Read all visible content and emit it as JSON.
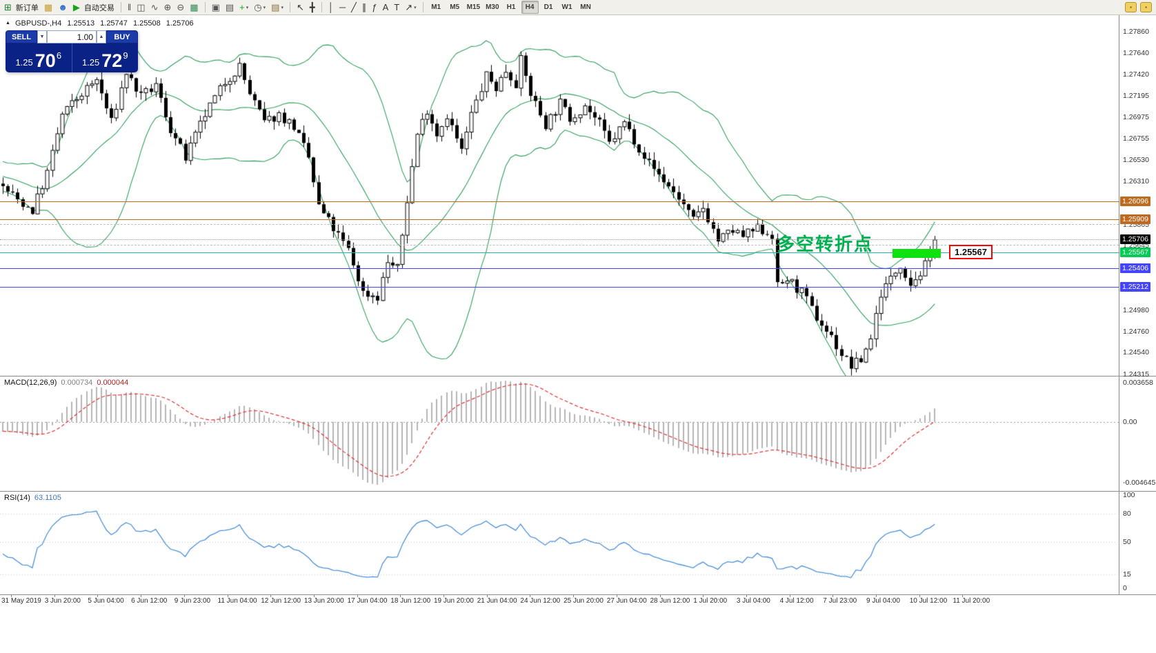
{
  "toolbar": {
    "items": [
      {
        "t": "icon",
        "name": "new-order-icon",
        "g": "⊞",
        "c": "#1e7d32"
      },
      {
        "t": "label",
        "name": "new-order-label",
        "text": "新订单"
      },
      {
        "t": "icon",
        "name": "charts-icon",
        "g": "▦",
        "c": "#c99a2e"
      },
      {
        "t": "icon",
        "name": "profile-icon",
        "g": "☻",
        "c": "#2f6fd0"
      },
      {
        "t": "icon",
        "name": "autotrade-icon",
        "g": "▶",
        "c": "#17a317"
      },
      {
        "t": "label",
        "name": "autotrade-label",
        "text": "自动交易"
      },
      {
        "t": "sep"
      },
      {
        "t": "icon",
        "name": "bars-chart-icon",
        "g": "‖",
        "c": "#555555"
      },
      {
        "t": "icon",
        "name": "candlestick-icon",
        "g": "◫",
        "c": "#555555"
      },
      {
        "t": "icon",
        "name": "line-chart-icon",
        "g": "∿",
        "c": "#555555"
      },
      {
        "t": "icon",
        "name": "zoom-in-icon",
        "g": "⊕",
        "c": "#555555"
      },
      {
        "t": "icon",
        "name": "zoom-out-icon",
        "g": "⊖",
        "c": "#555555"
      },
      {
        "t": "icon",
        "name": "tile-windows-icon",
        "g": "▦",
        "c": "#2e8b57"
      },
      {
        "t": "sep"
      },
      {
        "t": "icon",
        "name": "data-window-icon",
        "g": "▣",
        "c": "#555555"
      },
      {
        "t": "icon",
        "name": "navigator-icon",
        "g": "▤",
        "c": "#555555"
      },
      {
        "t": "icon",
        "name": "add-indicator-icon",
        "g": "+",
        "c": "#17a317",
        "caret": true
      },
      {
        "t": "icon",
        "name": "period-icon",
        "g": "◷",
        "c": "#555555",
        "caret": true
      },
      {
        "t": "icon",
        "name": "template-icon",
        "g": "▤",
        "c": "#8a6d3b",
        "caret": true
      },
      {
        "t": "sep"
      },
      {
        "t": "icon",
        "name": "cursor-icon",
        "g": "↖",
        "c": "#333333"
      },
      {
        "t": "icon",
        "name": "crosshair-icon",
        "g": "╋",
        "c": "#333333"
      },
      {
        "t": "sep"
      },
      {
        "t": "icon",
        "name": "vertical-line-icon",
        "g": "│",
        "c": "#333333"
      },
      {
        "t": "icon",
        "name": "horizontal-line-icon",
        "g": "─",
        "c": "#333333"
      },
      {
        "t": "icon",
        "name": "trendline-icon",
        "g": "╱",
        "c": "#333333"
      },
      {
        "t": "icon",
        "name": "channel-icon",
        "g": "∥",
        "c": "#333333"
      },
      {
        "t": "icon",
        "name": "fibonacci-icon",
        "g": "ƒ",
        "c": "#333333"
      },
      {
        "t": "icon",
        "name": "text-icon",
        "g": "A",
        "c": "#333333"
      },
      {
        "t": "icon",
        "name": "label-icon",
        "g": "T",
        "c": "#333333"
      },
      {
        "t": "icon",
        "name": "shapes-icon",
        "g": "↗",
        "c": "#333333",
        "caret": true
      },
      {
        "t": "sep"
      }
    ],
    "timeframes": [
      {
        "label": "M1",
        "active": false
      },
      {
        "label": "M5",
        "active": false
      },
      {
        "label": "M15",
        "active": false
      },
      {
        "label": "M30",
        "active": false
      },
      {
        "label": "H1",
        "active": false
      },
      {
        "label": "H4",
        "active": true
      },
      {
        "label": "D1",
        "active": false
      },
      {
        "label": "W1",
        "active": false
      },
      {
        "label": "MN",
        "active": false
      }
    ]
  },
  "symbol_header": {
    "symbol": "GBPUSD-,H4",
    "open": "1.25513",
    "high": "1.25747",
    "low": "1.25508",
    "close": "1.25706"
  },
  "trade_panel": {
    "sell_label": "SELL",
    "buy_label": "BUY",
    "volume": "1.00",
    "sell_price_main": "1.25",
    "sell_price_pips": "70",
    "sell_price_pt": "6",
    "buy_price_main": "1.25",
    "buy_price_pips": "72",
    "buy_price_pt": "9"
  },
  "main_chart": {
    "annotation": "多空转折点",
    "callout": "1.25567",
    "price_axis": {
      "top": 1.2803,
      "bottom": 1.243
    },
    "grid_labels": [
      "1.27860",
      "1.27640",
      "1.27420",
      "1.27195",
      "1.26975",
      "1.26755",
      "1.26530",
      "1.26310",
      "1.24980",
      "1.24760",
      "1.24540",
      "1.24315"
    ],
    "lines": [
      {
        "price": 1.26096,
        "label": "1.26096",
        "line": "solid",
        "color": "#C06A20",
        "label_bg": "#C06A20",
        "label_fg": "#FFFFFF"
      },
      {
        "price": 1.25909,
        "label": "1.25909",
        "line": "solid",
        "color": "#C06A20",
        "label_bg": "#C06A20",
        "label_fg": "#FFFFFF"
      },
      {
        "price": 1.25865,
        "label": "1.25865",
        "line": "dashed",
        "color": "#C0C0C0",
        "label_bg": "",
        "label_fg": "#444444"
      },
      {
        "price": 1.25706,
        "label": "1.25706",
        "line": "dotted",
        "color": "#999999",
        "label_bg": "#000000",
        "label_fg": "#FFFFFF"
      },
      {
        "price": 1.25645,
        "label": "1.25645",
        "line": "dashed",
        "color": "#C0C0C0",
        "label_bg": "",
        "label_fg": "#444444"
      },
      {
        "price": 1.25567,
        "label": "1.25567",
        "line": "solid",
        "color": "#1FB8A6",
        "label_bg": "#00CC55",
        "label_fg": "#FFFFFF"
      },
      {
        "price": 1.25406,
        "label": "1.25406",
        "line": "solid",
        "color": "#4444FF",
        "label_bg": "#4444FF",
        "label_fg": "#FFFFFF"
      },
      {
        "price": 1.25212,
        "label": "1.25212",
        "line": "solid",
        "color": "#4444FF",
        "label_bg": "#4444FF",
        "label_fg": "#FFFFFF"
      }
    ],
    "highlight_rect": {
      "from_candle": 181,
      "to_candle": 190,
      "price_low": 1.2552,
      "price_high": 1.25615,
      "color": "#0FE00F"
    }
  },
  "chart_data": {
    "type": "candlestick+indicators",
    "symbol": "GBPUSD",
    "period": "H4",
    "n_candles": 190,
    "warmup": 40,
    "bollinger": {
      "period": 20,
      "deviation": 2
    },
    "macd": {
      "fast": 12,
      "slow": 26,
      "signal": 9
    },
    "rsi": {
      "period": 14
    },
    "current_bar": {
      "open": 1.25513,
      "high": 1.25747,
      "low": 1.25508,
      "close": 1.25706
    },
    "waypoints": [
      [
        0,
        1.2625
      ],
      [
        3,
        1.2612
      ],
      [
        6,
        1.2601
      ],
      [
        9,
        1.264
      ],
      [
        12,
        1.27
      ],
      [
        16,
        1.2722
      ],
      [
        19,
        1.2736
      ],
      [
        22,
        1.2692
      ],
      [
        25,
        1.2744
      ],
      [
        28,
        1.2718
      ],
      [
        31,
        1.273
      ],
      [
        34,
        1.2685
      ],
      [
        37,
        1.2655
      ],
      [
        41,
        1.27
      ],
      [
        45,
        1.2734
      ],
      [
        48,
        1.275
      ],
      [
        50,
        1.2722
      ],
      [
        53,
        1.2692
      ],
      [
        56,
        1.27
      ],
      [
        59,
        1.2688
      ],
      [
        62,
        1.2655
      ],
      [
        64,
        1.2605
      ],
      [
        67,
        1.2582
      ],
      [
        70,
        1.256
      ],
      [
        73,
        1.2516
      ],
      [
        76,
        1.2512
      ],
      [
        78,
        1.2548
      ],
      [
        80,
        1.254
      ],
      [
        82,
        1.2612
      ],
      [
        84,
        1.268
      ],
      [
        86,
        1.2706
      ],
      [
        88,
        1.268
      ],
      [
        90,
        1.27
      ],
      [
        93,
        1.2662
      ],
      [
        95,
        1.27
      ],
      [
        98,
        1.274
      ],
      [
        100,
        1.2728
      ],
      [
        102,
        1.2746
      ],
      [
        104,
        1.2733
      ],
      [
        105,
        1.2756
      ],
      [
        107,
        1.2722
      ],
      [
        110,
        1.269
      ],
      [
        113,
        1.2712
      ],
      [
        115,
        1.2696
      ],
      [
        118,
        1.271
      ],
      [
        121,
        1.269
      ],
      [
        123,
        1.267
      ],
      [
        126,
        1.2692
      ],
      [
        129,
        1.2666
      ],
      [
        131,
        1.265
      ],
      [
        134,
        1.2632
      ],
      [
        137,
        1.2614
      ],
      [
        140,
        1.259
      ],
      [
        142,
        1.2604
      ],
      [
        145,
        1.257
      ],
      [
        148,
        1.258
      ],
      [
        150,
        1.2574
      ],
      [
        153,
        1.2582
      ],
      [
        156,
        1.2576
      ],
      [
        157,
        1.2522
      ],
      [
        159,
        1.253
      ],
      [
        162,
        1.2516
      ],
      [
        165,
        1.249
      ],
      [
        168,
        1.247
      ],
      [
        170,
        1.2452
      ],
      [
        172,
        1.244
      ],
      [
        174,
        1.2446
      ],
      [
        176,
        1.247
      ],
      [
        178,
        1.2516
      ],
      [
        180,
        1.253
      ],
      [
        182,
        1.2546
      ],
      [
        184,
        1.2526
      ],
      [
        186,
        1.2536
      ],
      [
        188,
        1.2552
      ],
      [
        189,
        1.2571
      ]
    ]
  },
  "macd_panel": {
    "name": "MACD(12,26,9)",
    "value_main": "0.000734",
    "value_signal": "0.000044",
    "scale_top": "0.003658",
    "scale_zero": "0.00",
    "scale_bottom": "-0.004645"
  },
  "rsi_panel": {
    "name": "RSI(14)",
    "value": "63.1105",
    "levels": [
      {
        "v": 100,
        "label": "100"
      },
      {
        "v": 80,
        "label": "80"
      },
      {
        "v": 50,
        "label": "50"
      },
      {
        "v": 15,
        "label": "15"
      },
      {
        "v": 0,
        "label": "0"
      }
    ]
  },
  "time_axis": [
    "31 May 2019",
    "3 Jun 20:00",
    "5 Jun 04:00",
    "6 Jun 12:00",
    "9 Jun 23:00",
    "11 Jun 04:00",
    "12 Jun 12:00",
    "13 Jun 20:00",
    "17 Jun 04:00",
    "18 Jun 12:00",
    "19 Jun 20:00",
    "21 Jun 04:00",
    "24 Jun 12:00",
    "25 Jun 20:00",
    "27 Jun 04:00",
    "28 Jun 12:00",
    "1 Jul 20:00",
    "3 Jul 04:00",
    "4 Jul 12:00",
    "7 Jul 23:00",
    "9 Jul 04:00",
    "10 Jul 12:00",
    "11 Jul 20:00"
  ]
}
